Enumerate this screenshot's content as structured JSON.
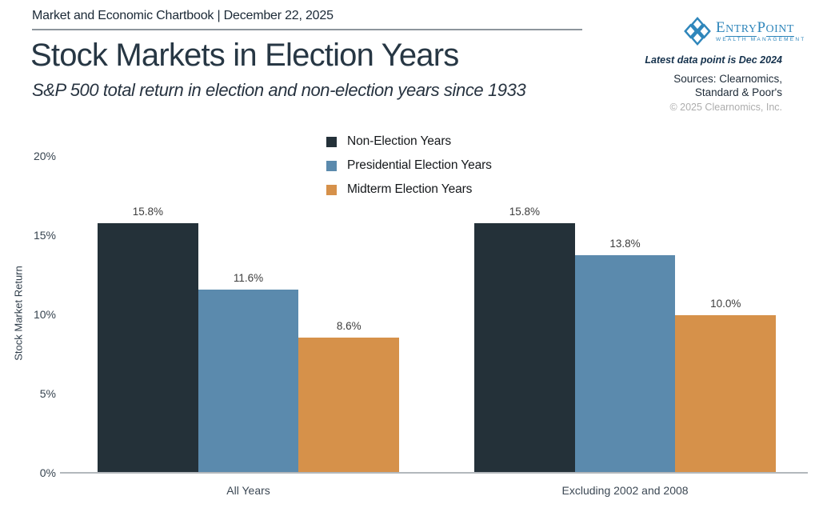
{
  "header": {
    "chartbook_label": "Market and Economic Chartbook | December 22, 2025",
    "title": "Stock Markets in Election Years",
    "subtitle": "S&P 500 total return in election and non-election years since 1933"
  },
  "branding": {
    "logo_part_e": "E",
    "logo_part_ntry": "NTRY",
    "logo_part_p": "P",
    "logo_part_oint": "OINT",
    "logo_subtitle": "WEALTH MANAGEMENT",
    "logo_color": "#2f86bb",
    "latest_note": "Latest data point is Dec 2024",
    "sources_line1": "Sources: Clearnomics,",
    "sources_line2": "Standard & Poor's",
    "copyright": "© 2025 Clearnomics, Inc."
  },
  "chart_data": {
    "type": "bar",
    "categories": [
      "All Years",
      "Excluding 2002 and 2008"
    ],
    "series": [
      {
        "name": "Non-Election Years",
        "color": "#243139",
        "values": [
          15.8,
          15.8
        ]
      },
      {
        "name": "Presidential Election Years",
        "color": "#5b8aad",
        "values": [
          11.6,
          13.8
        ]
      },
      {
        "name": "Midterm Election Years",
        "color": "#d6914a",
        "values": [
          8.6,
          10.0
        ]
      }
    ],
    "value_labels": [
      [
        "15.8%",
        "11.6%",
        "8.6%"
      ],
      [
        "15.8%",
        "13.8%",
        "10.0%"
      ]
    ],
    "ylabel": "Stock Market Return",
    "xlabel": "",
    "ylim": [
      0,
      20
    ],
    "ytick_step": 5,
    "yticks": [
      "0%",
      "5%",
      "10%",
      "15%",
      "20%"
    ],
    "grid": false,
    "legend_position": "top-center"
  }
}
